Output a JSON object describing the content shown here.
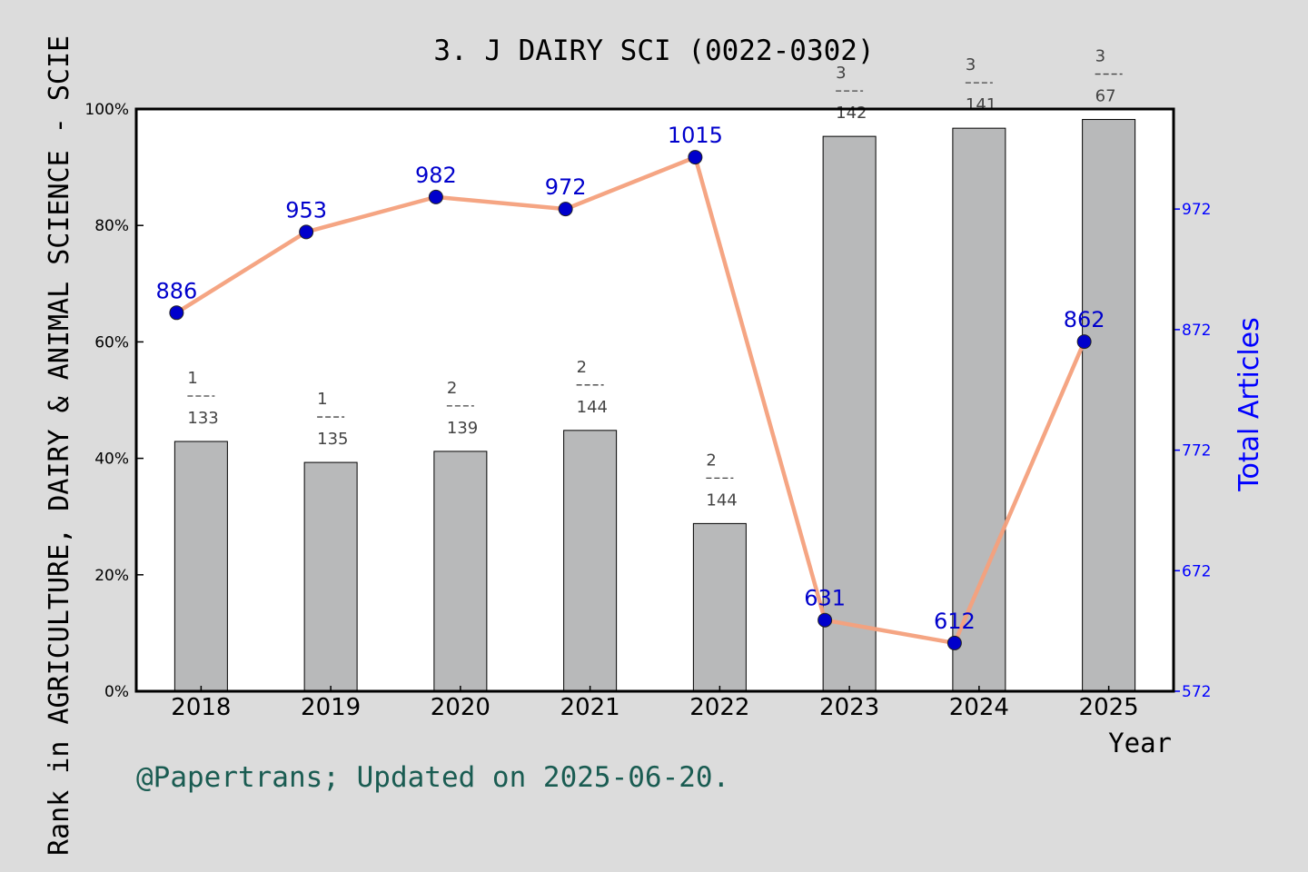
{
  "title": "3. J DAIRY SCI (0022-0302)",
  "footer": "@Papertrans; Updated on 2025-06-20.",
  "colors": {
    "background": "#dcdcdc",
    "plot_background": "#ffffff",
    "bar_fill": "#b8b9ba",
    "line": "#f4a07c",
    "marker": "#0000cc",
    "article_label": "#0000cc",
    "right_axis": "#0000ff",
    "footer": "#1a5c52"
  },
  "chart_data": {
    "type": "bar",
    "categories": [
      "2018",
      "2019",
      "2020",
      "2021",
      "2022",
      "2023",
      "2024",
      "2025"
    ],
    "xlabel": "Year",
    "ylabel": "Rank in AGRICULTURE, DAIRY & ANIMAL SCIENCE - SCIE",
    "y2label": "Total Articles",
    "ylim": [
      0,
      100
    ],
    "y2lim": [
      572,
      1055
    ],
    "yticks": [
      "0%",
      "20%",
      "40%",
      "60%",
      "80%",
      "100%"
    ],
    "y2ticks": [
      572,
      672,
      772,
      872,
      972
    ],
    "series": [
      {
        "kind": "bar",
        "axis": "left",
        "values": [
          42.9,
          39.3,
          41.2,
          44.8,
          28.8,
          95.3,
          96.7,
          98.2
        ],
        "rank": [
          "1",
          "1",
          "2",
          "2",
          "2",
          "3",
          "3",
          "3"
        ],
        "total": [
          "133",
          "135",
          "139",
          "144",
          "144",
          "142",
          "141",
          "67"
        ]
      },
      {
        "kind": "line",
        "axis": "right",
        "values": [
          886,
          953,
          982,
          972,
          1015,
          631,
          612,
          862
        ],
        "labels": [
          "886",
          "953",
          "982",
          "972",
          "1015",
          "631",
          "612",
          "862"
        ]
      }
    ]
  }
}
